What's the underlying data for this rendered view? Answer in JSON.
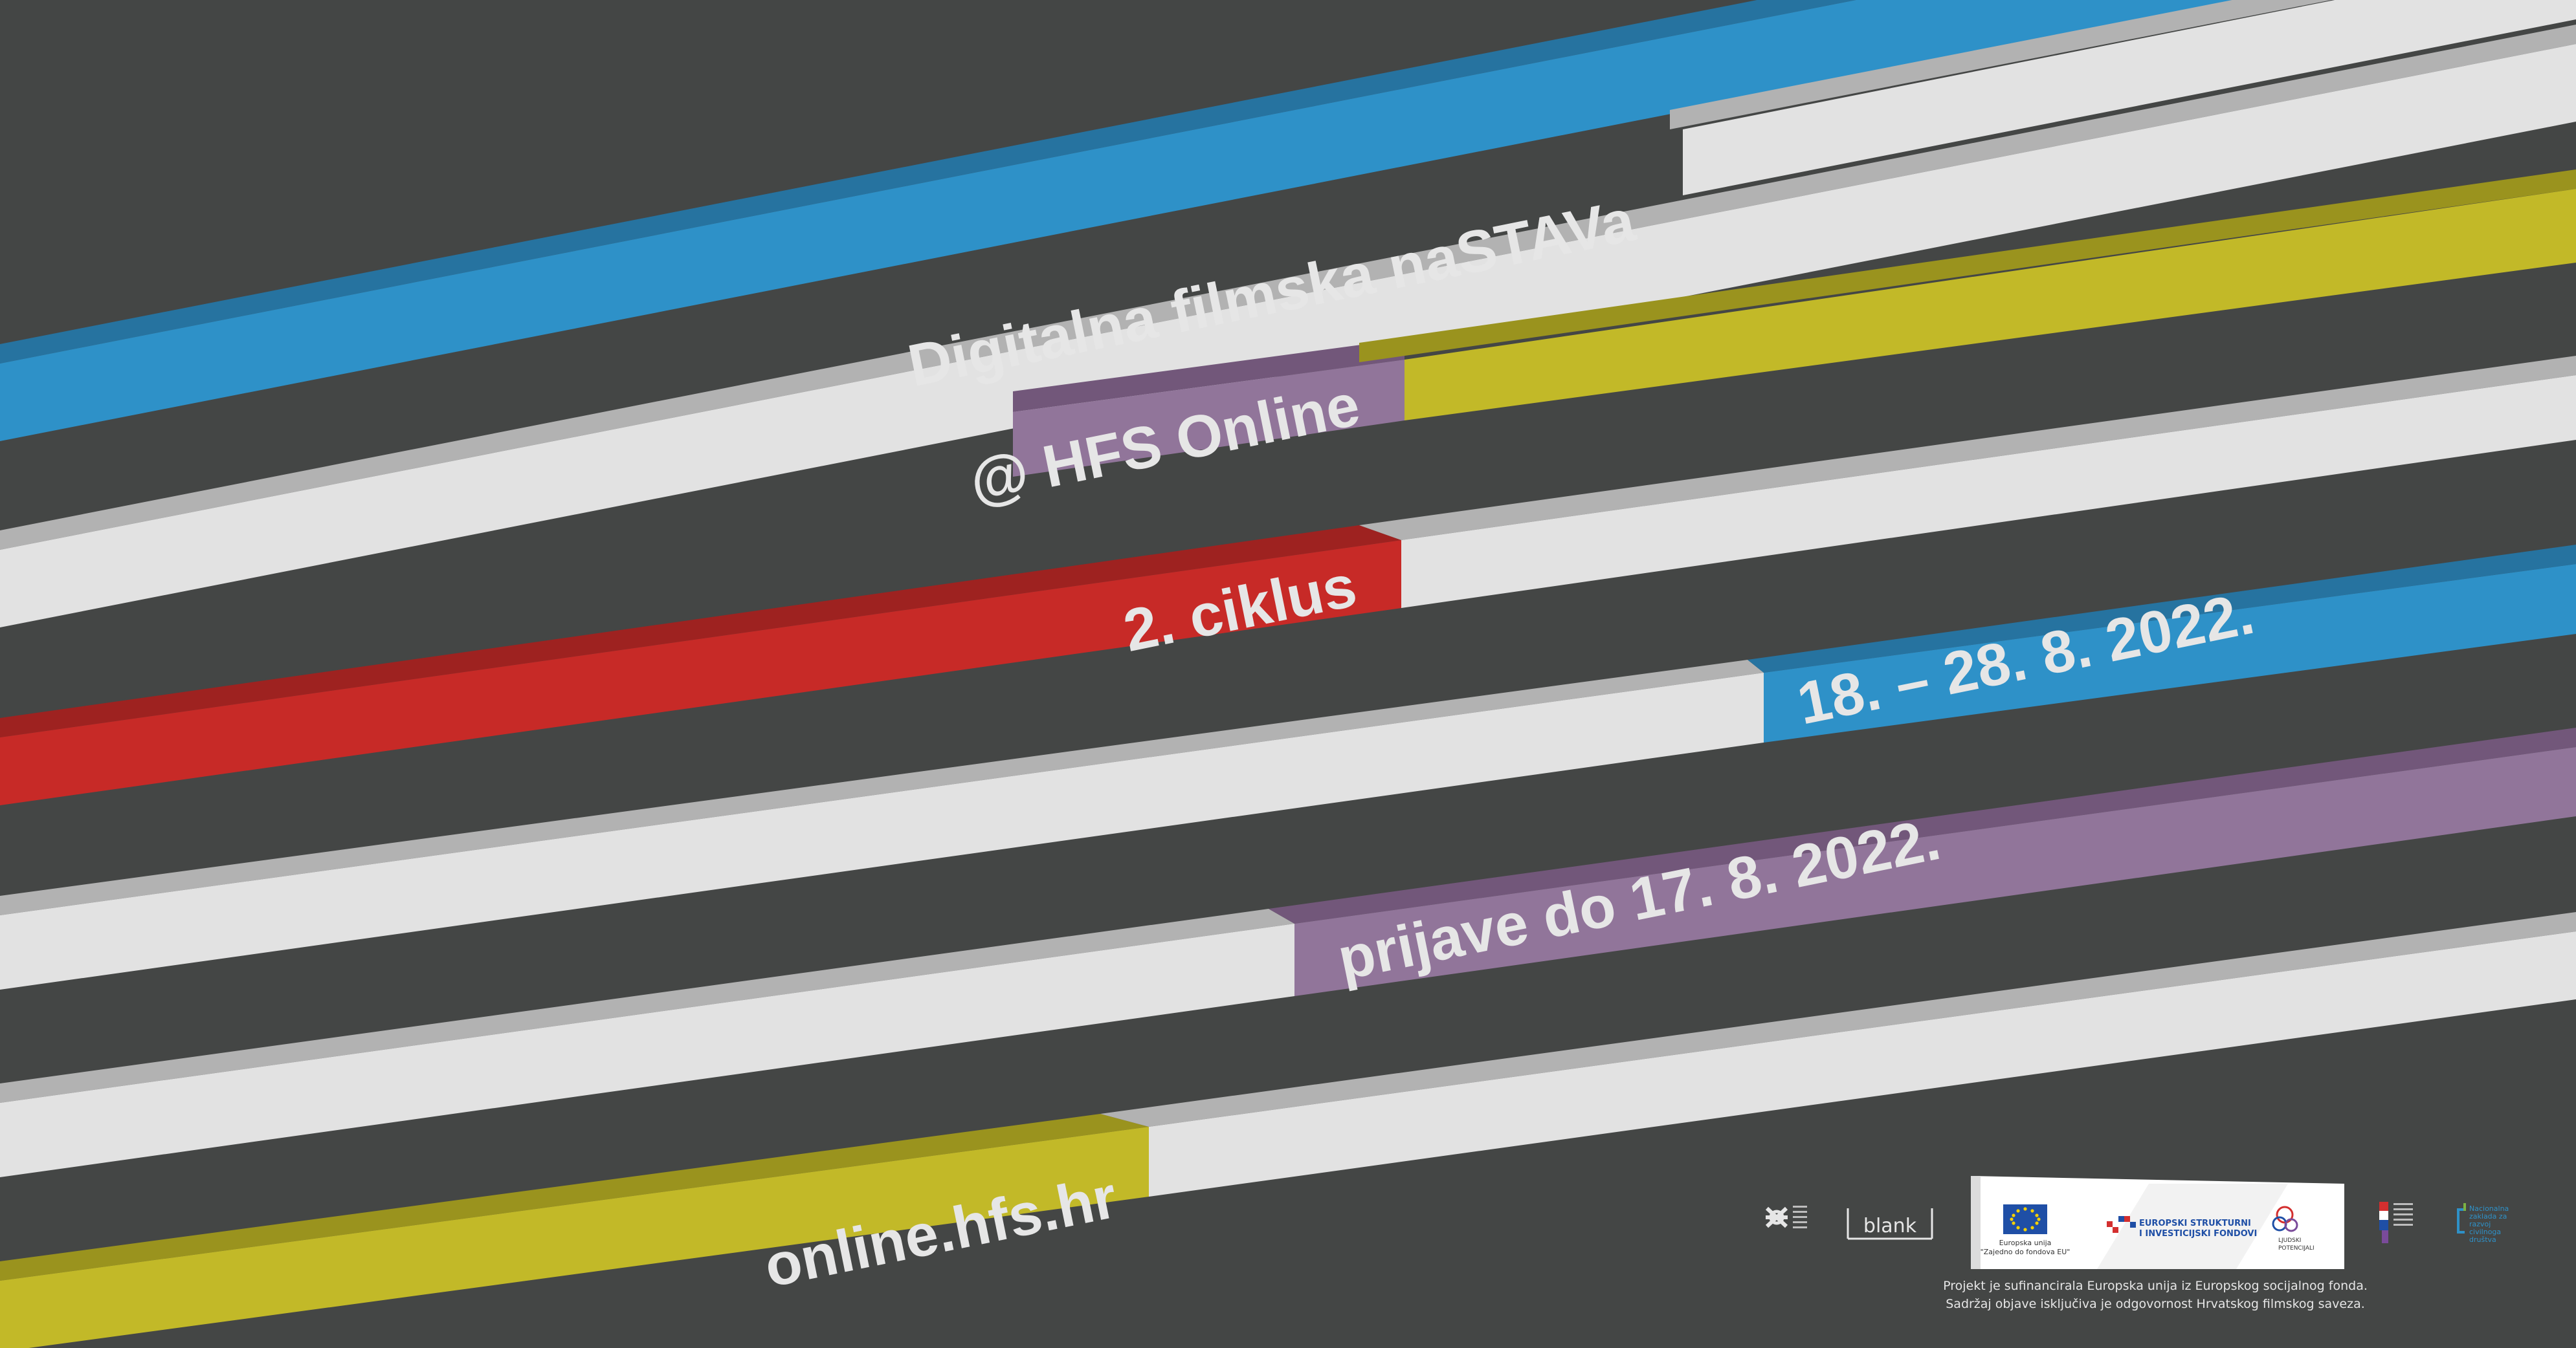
{
  "colors": {
    "background": "#444645",
    "stripe_light": "#e2e2e2",
    "blue": "#2e91c8",
    "olive": "#c2b928",
    "purple": "#91759a",
    "red": "#c72a27",
    "label_text": "#e6e6e6"
  },
  "headline": {
    "title": "Digitalna filmska naSTAVa",
    "platform": "@ HFS Online",
    "cycle": "2. ciklus",
    "dates": "18. – 28. 8. 2022.",
    "deadline": "prijave do 17. 8. 2022.",
    "url": "online.hfs.hr"
  },
  "footer": {
    "partner_blank": "blank",
    "eu_flag_caption_line1": "Europska unija",
    "eu_flag_caption_line2": "\"Zajedno do fondova EU\"",
    "esif_line1": "EUROPSKI STRUKTURNI",
    "esif_line2": "I INVESTICIJSKI FONDOVI",
    "ljudski_line1": "LJUDSKI",
    "ljudski_line2": "POTENCIJALI",
    "nzcd_line1": "Nacionalna",
    "nzcd_line2": "zaklada za",
    "nzcd_line3": "razvoj",
    "nzcd_line4": "civilnoga",
    "nzcd_line5": "društva",
    "disclaimer_line1": "Projekt je sufinancirala Europska unija iz Europskog socijalnog fonda.",
    "disclaimer_line2": "Sadržaj objave isključiva je odgovornost Hrvatskog filmskog saveza."
  }
}
